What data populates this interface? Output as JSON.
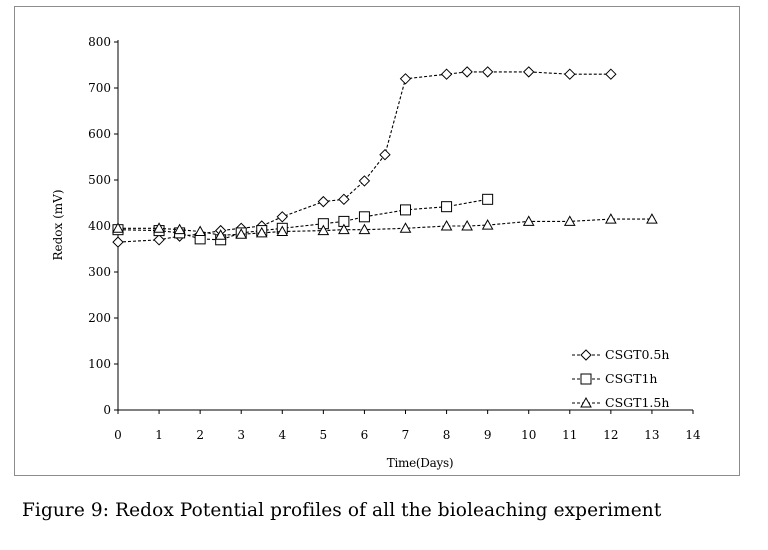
{
  "figure": {
    "caption": "Figure 9: Redox Potential profiles of all the bioleaching experiment"
  },
  "chart_data": {
    "type": "line",
    "xlabel": "Time(Days)",
    "ylabel": "Redox (mV)",
    "xlim": [
      0,
      14
    ],
    "ylim": [
      0,
      800
    ],
    "x_ticks": [
      "0",
      "1",
      "2",
      "3",
      "4",
      "5",
      "6",
      "7",
      "8",
      "9",
      "10",
      "11",
      "12",
      "13",
      "14"
    ],
    "y_ticks": [
      "0",
      "100",
      "200",
      "300",
      "400",
      "500",
      "600",
      "700",
      "800"
    ],
    "grid": false,
    "legend_position": "bottom-right",
    "series": [
      {
        "name": "CSGT0.5h",
        "marker": "diamond",
        "points": [
          [
            0,
            365
          ],
          [
            1,
            370
          ],
          [
            1.5,
            378
          ],
          [
            2,
            382
          ],
          [
            2.5,
            390
          ],
          [
            3,
            395
          ],
          [
            3.5,
            400
          ],
          [
            4,
            420
          ],
          [
            5,
            453
          ],
          [
            5.5,
            458
          ],
          [
            6,
            498
          ],
          [
            6.5,
            555
          ],
          [
            7,
            720
          ],
          [
            8,
            730
          ],
          [
            8.5,
            735
          ],
          [
            9,
            735
          ],
          [
            10,
            735
          ],
          [
            11,
            730
          ],
          [
            12,
            730
          ]
        ]
      },
      {
        "name": "CSGT1h",
        "marker": "square",
        "points": [
          [
            0,
            392
          ],
          [
            1,
            390
          ],
          [
            1.5,
            385
          ],
          [
            2,
            372
          ],
          [
            2.5,
            370
          ],
          [
            3,
            385
          ],
          [
            3.5,
            390
          ],
          [
            4,
            395
          ],
          [
            5,
            405
          ],
          [
            5.5,
            410
          ],
          [
            6,
            420
          ],
          [
            7,
            435
          ],
          [
            8,
            442
          ],
          [
            9,
            458
          ]
        ]
      },
      {
        "name": "CSGT1.5h",
        "marker": "triangle",
        "points": [
          [
            0,
            395
          ],
          [
            1,
            395
          ],
          [
            1.5,
            392
          ],
          [
            2,
            388
          ],
          [
            2.5,
            380
          ],
          [
            3,
            382
          ],
          [
            3.5,
            385
          ],
          [
            4,
            388
          ],
          [
            5,
            390
          ],
          [
            5.5,
            392
          ],
          [
            6,
            392
          ],
          [
            7,
            395
          ],
          [
            8,
            400
          ],
          [
            8.5,
            400
          ],
          [
            9,
            402
          ],
          [
            10,
            410
          ],
          [
            11,
            410
          ],
          [
            12,
            415
          ],
          [
            13,
            415
          ]
        ]
      }
    ]
  }
}
